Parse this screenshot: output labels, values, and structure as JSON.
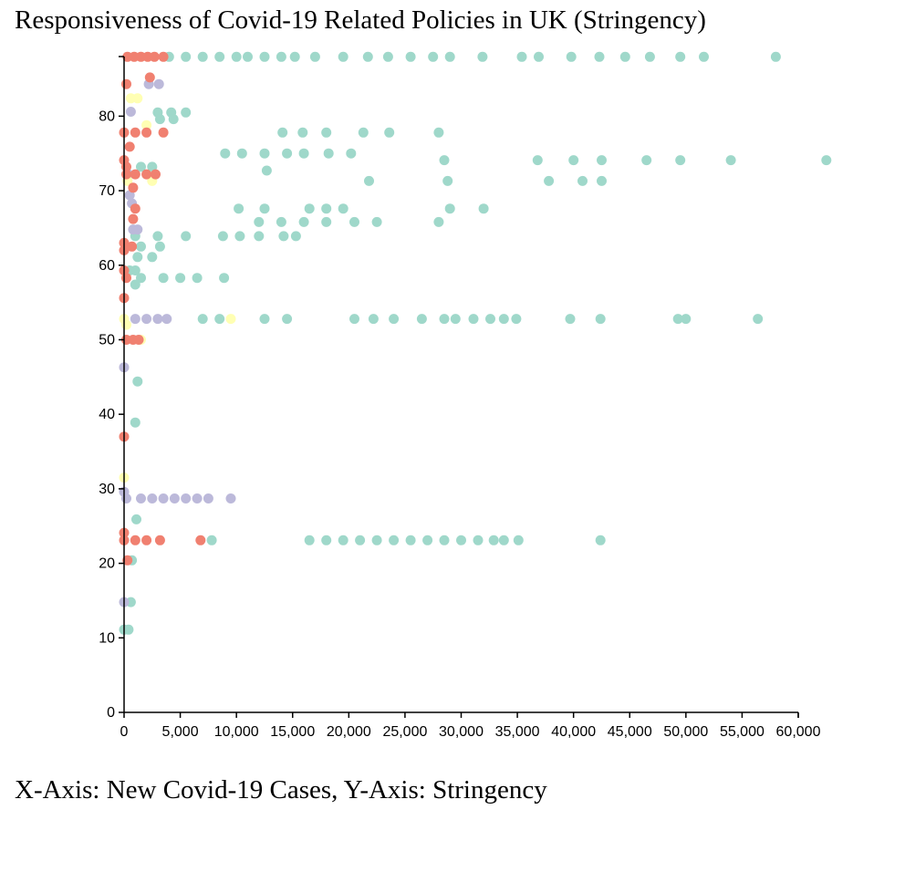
{
  "title": "Responsiveness of Covid-19 Related Policies in UK (Stringency)",
  "caption": "X-Axis: New Covid-19 Cases, Y-Axis: Stringency",
  "chart_data": {
    "type": "scatter",
    "xlim": [
      0,
      60000
    ],
    "ylim": [
      0,
      88
    ],
    "x_ticks": [
      0,
      5000,
      10000,
      15000,
      20000,
      25000,
      30000,
      35000,
      40000,
      45000,
      50000,
      55000,
      60000
    ],
    "x_tick_labels": [
      "0",
      "5,000",
      "10,000",
      "15,000",
      "20,000",
      "25,000",
      "30,000",
      "35,000",
      "40,000",
      "45,000",
      "50,000",
      "55,000",
      "60,000"
    ],
    "y_ticks": [
      0,
      10,
      20,
      30,
      40,
      50,
      60,
      70,
      80
    ],
    "y_tick_labels": [
      "0",
      "10",
      "20",
      "30",
      "40",
      "50",
      "60",
      "70",
      "80"
    ],
    "grid": false,
    "legend": "none",
    "series": [
      {
        "color": "#9fd8ca",
        "points": [
          [
            4000,
            87.96
          ],
          [
            5500,
            87.96
          ],
          [
            7000,
            87.96
          ],
          [
            8500,
            87.96
          ],
          [
            10000,
            87.96
          ],
          [
            11000,
            87.96
          ],
          [
            12500,
            87.96
          ],
          [
            14000,
            87.96
          ],
          [
            15200,
            87.96
          ],
          [
            17000,
            87.96
          ],
          [
            19500,
            87.96
          ],
          [
            21700,
            87.96
          ],
          [
            23500,
            87.96
          ],
          [
            25500,
            87.96
          ],
          [
            27500,
            87.96
          ],
          [
            29000,
            87.96
          ],
          [
            31900,
            87.96
          ],
          [
            35400,
            87.96
          ],
          [
            36900,
            87.96
          ],
          [
            39800,
            87.96
          ],
          [
            42300,
            87.96
          ],
          [
            44600,
            87.96
          ],
          [
            46800,
            87.96
          ],
          [
            49500,
            87.96
          ],
          [
            51600,
            87.96
          ],
          [
            58000,
            87.96
          ],
          [
            3000,
            80.5
          ],
          [
            4200,
            80.5
          ],
          [
            5500,
            80.5
          ],
          [
            3200,
            79.6
          ],
          [
            4400,
            79.6
          ],
          [
            14100,
            77.8
          ],
          [
            15900,
            77.8
          ],
          [
            18000,
            77.8
          ],
          [
            21300,
            77.8
          ],
          [
            23600,
            77.8
          ],
          [
            28000,
            77.8
          ],
          [
            9000,
            75.0
          ],
          [
            10500,
            75.0
          ],
          [
            12500,
            75.0
          ],
          [
            14500,
            75.0
          ],
          [
            16000,
            75.0
          ],
          [
            18200,
            75.0
          ],
          [
            20200,
            75.0
          ],
          [
            28500,
            74.1
          ],
          [
            36800,
            74.1
          ],
          [
            40000,
            74.1
          ],
          [
            42500,
            74.1
          ],
          [
            46500,
            74.1
          ],
          [
            49500,
            74.1
          ],
          [
            54000,
            74.1
          ],
          [
            62500,
            74.1
          ],
          [
            1500,
            73.2
          ],
          [
            2500,
            73.2
          ],
          [
            12700,
            72.7
          ],
          [
            21800,
            71.3
          ],
          [
            28800,
            71.3
          ],
          [
            37800,
            71.3
          ],
          [
            40800,
            71.3
          ],
          [
            42500,
            71.3
          ],
          [
            10200,
            67.6
          ],
          [
            12500,
            67.6
          ],
          [
            16500,
            67.6
          ],
          [
            18000,
            67.6
          ],
          [
            19500,
            67.6
          ],
          [
            29000,
            67.6
          ],
          [
            32000,
            67.6
          ],
          [
            12000,
            65.8
          ],
          [
            14000,
            65.8
          ],
          [
            16000,
            65.8
          ],
          [
            18000,
            65.8
          ],
          [
            20500,
            65.8
          ],
          [
            22500,
            65.8
          ],
          [
            28000,
            65.8
          ],
          [
            1000,
            63.9
          ],
          [
            3000,
            63.9
          ],
          [
            5500,
            63.9
          ],
          [
            8800,
            63.9
          ],
          [
            10300,
            63.9
          ],
          [
            12000,
            63.9
          ],
          [
            14200,
            63.9
          ],
          [
            15300,
            63.9
          ],
          [
            1500,
            62.5
          ],
          [
            3200,
            62.5
          ],
          [
            1200,
            61.1
          ],
          [
            2500,
            61.1
          ],
          [
            1000,
            59.3
          ],
          [
            500,
            59.3
          ],
          [
            1500,
            58.3
          ],
          [
            3500,
            58.3
          ],
          [
            5000,
            58.3
          ],
          [
            6500,
            58.3
          ],
          [
            8900,
            58.3
          ],
          [
            1000,
            57.4
          ],
          [
            7000,
            52.8
          ],
          [
            8500,
            52.8
          ],
          [
            12500,
            52.8
          ],
          [
            14500,
            52.8
          ],
          [
            20500,
            52.8
          ],
          [
            22200,
            52.8
          ],
          [
            24000,
            52.8
          ],
          [
            26500,
            52.8
          ],
          [
            28500,
            52.8
          ],
          [
            29500,
            52.8
          ],
          [
            31100,
            52.8
          ],
          [
            32600,
            52.8
          ],
          [
            33800,
            52.8
          ],
          [
            34900,
            52.8
          ],
          [
            39700,
            52.8
          ],
          [
            42400,
            52.8
          ],
          [
            49300,
            52.8
          ],
          [
            50000,
            52.8
          ],
          [
            56400,
            52.8
          ],
          [
            1200,
            44.4
          ],
          [
            1000,
            38.9
          ],
          [
            1100,
            25.9
          ],
          [
            7800,
            23.1
          ],
          [
            16500,
            23.1
          ],
          [
            18000,
            23.1
          ],
          [
            19500,
            23.1
          ],
          [
            21000,
            23.1
          ],
          [
            22500,
            23.1
          ],
          [
            24000,
            23.1
          ],
          [
            25500,
            23.1
          ],
          [
            27000,
            23.1
          ],
          [
            28500,
            23.1
          ],
          [
            30000,
            23.1
          ],
          [
            31500,
            23.1
          ],
          [
            32900,
            23.1
          ],
          [
            33800,
            23.1
          ],
          [
            35100,
            23.1
          ],
          [
            42400,
            23.1
          ],
          [
            700,
            20.4
          ],
          [
            600,
            14.8
          ],
          [
            0,
            11.1
          ],
          [
            400,
            11.1
          ]
        ]
      },
      {
        "color": "#bcb9da",
        "points": [
          [
            2200,
            84.3
          ],
          [
            3100,
            84.3
          ],
          [
            600,
            80.6
          ],
          [
            400,
            72.2
          ],
          [
            500,
            69.4
          ],
          [
            700,
            68.3
          ],
          [
            800,
            64.8
          ],
          [
            1200,
            64.8
          ],
          [
            1000,
            52.8
          ],
          [
            2000,
            52.8
          ],
          [
            3000,
            52.8
          ],
          [
            3800,
            52.8
          ],
          [
            0,
            46.3
          ],
          [
            0,
            29.6
          ],
          [
            200,
            28.7
          ],
          [
            1500,
            28.7
          ],
          [
            2500,
            28.7
          ],
          [
            3500,
            28.7
          ],
          [
            4500,
            28.7
          ],
          [
            5500,
            28.7
          ],
          [
            6500,
            28.7
          ],
          [
            7500,
            28.7
          ],
          [
            9500,
            28.7
          ],
          [
            0,
            14.8
          ]
        ]
      },
      {
        "color": "#ffffb3",
        "points": [
          [
            600,
            82.4
          ],
          [
            1200,
            82.4
          ],
          [
            2000,
            78.8
          ],
          [
            2500,
            71.3
          ],
          [
            300,
            71.3
          ],
          [
            0,
            52.8
          ],
          [
            200,
            52.0
          ],
          [
            1500,
            50.0
          ],
          [
            9500,
            52.8
          ],
          [
            0,
            31.5
          ]
        ]
      },
      {
        "color": "#f08070",
        "points": [
          [
            300,
            87.96
          ],
          [
            900,
            87.96
          ],
          [
            1500,
            87.96
          ],
          [
            2100,
            87.96
          ],
          [
            2700,
            87.96
          ],
          [
            3500,
            87.96
          ],
          [
            200,
            84.3
          ],
          [
            2300,
            85.2
          ],
          [
            0,
            77.8
          ],
          [
            1000,
            77.8
          ],
          [
            2000,
            77.8
          ],
          [
            3500,
            77.8
          ],
          [
            500,
            75.9
          ],
          [
            0,
            74.1
          ],
          [
            200,
            73.2
          ],
          [
            200,
            72.2
          ],
          [
            1000,
            72.2
          ],
          [
            2000,
            72.2
          ],
          [
            2800,
            72.2
          ],
          [
            800,
            70.4
          ],
          [
            1000,
            67.6
          ],
          [
            800,
            66.2
          ],
          [
            0,
            63.0
          ],
          [
            700,
            62.5
          ],
          [
            0,
            62.0
          ],
          [
            0,
            59.3
          ],
          [
            200,
            58.3
          ],
          [
            0,
            55.6
          ],
          [
            200,
            50.0
          ],
          [
            800,
            50.0
          ],
          [
            1300,
            50.0
          ],
          [
            0,
            37.0
          ],
          [
            0,
            24.1
          ],
          [
            0,
            23.1
          ],
          [
            1000,
            23.1
          ],
          [
            2000,
            23.1
          ],
          [
            3200,
            23.1
          ],
          [
            6800,
            23.1
          ],
          [
            300,
            20.4
          ]
        ]
      }
    ]
  }
}
